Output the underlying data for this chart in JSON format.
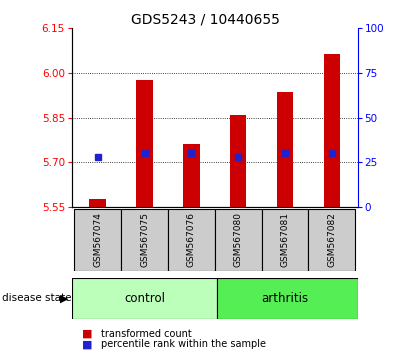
{
  "title": "GDS5243 / 10440655",
  "samples": [
    "GSM567074",
    "GSM567075",
    "GSM567076",
    "GSM567080",
    "GSM567081",
    "GSM567082"
  ],
  "bar_base": 5.55,
  "bar_tops": [
    5.578,
    5.975,
    5.762,
    5.858,
    5.935,
    6.065
  ],
  "percentile_vals": [
    28,
    30,
    30,
    28,
    30,
    30
  ],
  "ylim_left": [
    5.55,
    6.15
  ],
  "ylim_right": [
    0,
    100
  ],
  "yticks_left": [
    5.55,
    5.7,
    5.85,
    6.0,
    6.15
  ],
  "yticks_right": [
    0,
    25,
    50,
    75,
    100
  ],
  "bar_color": "#cc0000",
  "blue_color": "#2222cc",
  "control_color": "#bbffbb",
  "arthritis_color": "#55ee55",
  "label_area_color": "#cccccc",
  "disease_state_label": "disease state",
  "legend_red": "transformed count",
  "legend_blue": "percentile rank within the sample",
  "bar_width": 0.35
}
